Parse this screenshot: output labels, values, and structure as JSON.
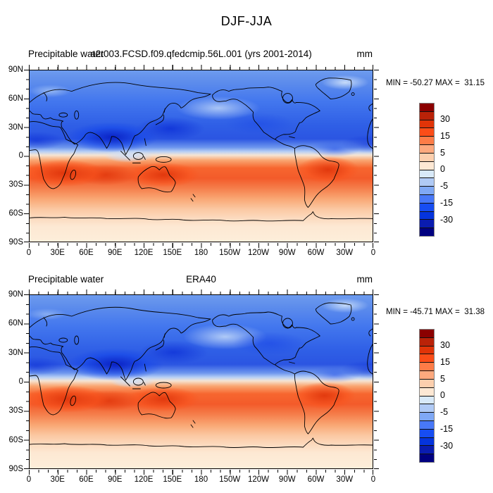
{
  "main_title": "DJF-JJA",
  "panels": [
    {
      "label_left": "Precipitable water",
      "title_center": "a2t003.FCSD.f09.qfedcmip.56L.001 (yrs 2001-2014)",
      "units": "mm",
      "stats": "MIN = -50.27 MAX =  31.15"
    },
    {
      "label_left": "Precipitable water",
      "title_center": "ERA40",
      "units": "mm",
      "stats": "MIN = -45.71 MAX =  31.38"
    }
  ],
  "axes": {
    "y_labels": [
      "90N",
      "60N",
      "30N",
      "0",
      "30S",
      "60S",
      "90S"
    ],
    "x_labels": [
      "0",
      "30E",
      "60E",
      "90E",
      "120E",
      "150E",
      "180",
      "150W",
      "120W",
      "90W",
      "60W",
      "30W",
      "0"
    ]
  },
  "colorbar": {
    "labels": [
      "30",
      "15",
      "5",
      "0",
      "-5",
      "-15",
      "-30"
    ],
    "colors": [
      "#8b0000",
      "#ba2208",
      "#e13408",
      "#fb4d18",
      "#fd7c47",
      "#fda97e",
      "#fccfae",
      "#fde8d4",
      "#d8e9f8",
      "#b0caf5",
      "#7fa8f5",
      "#4878f8",
      "#174df2",
      "#0534dd",
      "#0a1cb0",
      "#000080"
    ]
  },
  "chart_data": [
    {
      "type": "heatmap",
      "subtype": "filled-contour world map, equirectangular, longitudes 0E eastward to 0E",
      "variable": "Precipitable water",
      "composite": "DJF-JJA seasonal difference",
      "title": "a2t003.FCSD.f09.qfedcmip.56L.001 (yrs 2001-2014)",
      "units": "mm",
      "min": -50.27,
      "max": 31.15,
      "contour_levels": [
        -40,
        -30,
        -20,
        -15,
        -10,
        -5,
        -2,
        0,
        2,
        5,
        10,
        15,
        20,
        30,
        40
      ],
      "labeled_colorbar_levels": [
        30,
        15,
        5,
        0,
        -5,
        -15,
        -30
      ],
      "lat_ticks": [
        "90N",
        "60N",
        "30N",
        "0",
        "30S",
        "60S",
        "90S"
      ],
      "lon_ticks": [
        "0",
        "30E",
        "60E",
        "90E",
        "120E",
        "150E",
        "180",
        "150W",
        "120W",
        "90W",
        "60W",
        "30W",
        "0"
      ],
      "pattern": "Negative (blue) values over the whole Northern Hemisphere, strongest (< -30 mm) over South and East Asia and West Africa; positive (red) values over the Southern Hemisphere tropics with maxima (> 20 mm) over southern Africa, the Indian Ocean, Australia and central South America; near-zero band just north of the equator and weak positive values toward Antarctica"
    },
    {
      "type": "heatmap",
      "subtype": "filled-contour world map, equirectangular, longitudes 0E eastward to 0E",
      "variable": "Precipitable water",
      "composite": "DJF-JJA seasonal difference",
      "title": "ERA40",
      "units": "mm",
      "min": -45.71,
      "max": 31.38,
      "contour_levels": [
        -40,
        -30,
        -20,
        -15,
        -10,
        -5,
        -2,
        0,
        2,
        5,
        10,
        15,
        20,
        30,
        40
      ],
      "labeled_colorbar_levels": [
        30,
        15,
        5,
        0,
        -5,
        -15,
        -30
      ],
      "lat_ticks": [
        "90N",
        "60N",
        "30N",
        "0",
        "30S",
        "60S",
        "90S"
      ],
      "lon_ticks": [
        "0",
        "30E",
        "60E",
        "90E",
        "120E",
        "150E",
        "180",
        "150W",
        "120W",
        "90W",
        "60W",
        "30W",
        "0"
      ],
      "pattern": "Same structure as the model panel: Northern Hemisphere negative (blue) with deepest minima over South/East Asia, Southern Hemisphere tropical positive (red) maxima over southern Africa, Australia and South America"
    }
  ]
}
